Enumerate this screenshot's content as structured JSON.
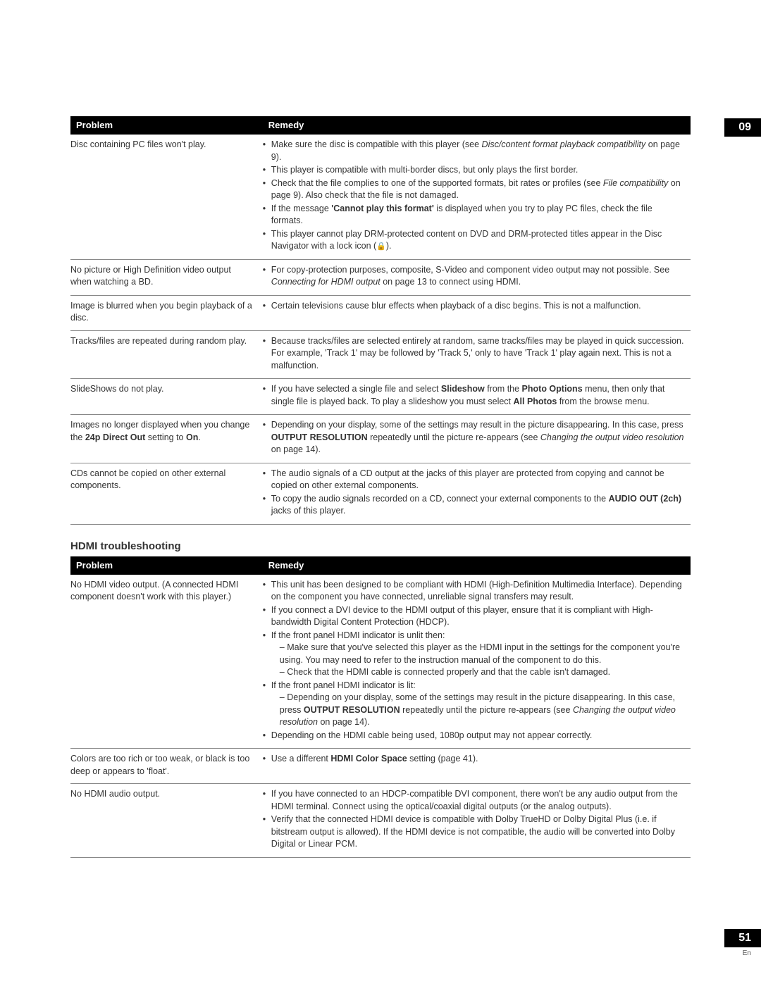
{
  "chapter": "09",
  "pageNumber": "51",
  "lang": "En",
  "colors": {
    "headerBg": "#000000",
    "headerText": "#ffffff",
    "bodyText": "#333333",
    "rule": "#888888"
  },
  "table1": {
    "headers": {
      "problem": "Problem",
      "remedy": "Remedy"
    },
    "rows": [
      {
        "problem": "Disc containing PC files won't play.",
        "remedyHtml": "<ul class='remedy-list'><li>Make sure the disc is compatible with this player (see <em class='it'>Disc/content format playback compatibility</em> on page 9).</li><li>This player is compatible with multi-border discs, but only plays the first border.</li><li>Check that the file complies to one of the supported formats, bit rates or profiles (see <em class='it'>File compatibility</em> on page 9). Also check that the file is not damaged.</li><li>If the message <strong class='b'>'Cannot play this format'</strong> is displayed when you try to play PC files, check the file formats.</li><li>This player cannot play DRM-protected content on DVD and DRM-protected titles appear in the Disc Navigator with a lock icon (<span class='lock-icon'>🔒</span>).</li></ul>"
      },
      {
        "problem": "No picture or High Definition video output when watching a BD.",
        "remedyHtml": "<ul class='remedy-list'><li>For copy-protection purposes, composite, S-Video and component video output may not possible. See <em class='it'>Connecting for HDMI output</em> on page 13 to connect using HDMI.</li></ul>"
      },
      {
        "problem": "Image is blurred when you begin playback of a disc.",
        "remedyHtml": "<ul class='remedy-list'><li>Certain televisions cause blur effects when playback of a disc begins. This is not a malfunction.</li></ul>"
      },
      {
        "problem": "Tracks/files are repeated during random play.",
        "remedyHtml": "<ul class='remedy-list'><li>Because tracks/files are selected entirely at random, same tracks/files may be played in quick succession. For example, 'Track 1' may be followed by 'Track 5,' only to have 'Track 1' play again next. This is not a malfunction.</li></ul>"
      },
      {
        "problem": "SlideShows do not play.",
        "remedyHtml": "<ul class='remedy-list'><li>If you have selected a single file and select <strong class='b'>Slideshow</strong> from the <strong class='b'>Photo Options</strong> menu, then only that single file is played back. To play a slideshow you must select <strong class='b'>All Photos</strong> from the browse menu.</li></ul>"
      },
      {
        "problemHtml": "Images no longer displayed when you change the <strong class='b'>24p Direct Out</strong> setting to <strong class='b'>On</strong>.",
        "remedyHtml": "<ul class='remedy-list'><li>Depending on your display, some of the settings may result in the picture disappearing. In this case, press <strong class='b'>OUTPUT RESOLUTION</strong> repeatedly until the picture re-appears (see <em class='it'>Changing the output video resolution</em> on page 14).</li></ul>"
      },
      {
        "problem": "CDs cannot be copied on other external components.",
        "remedyHtml": "<ul class='remedy-list'><li>The audio signals of a CD output at the jacks of this player are protected from copying and cannot be copied on other external components.</li><li>To copy the audio signals recorded on a CD, connect your external components to the <strong class='b'>AUDIO OUT (2ch)</strong> jacks of this player.</li></ul>"
      }
    ]
  },
  "section2": {
    "heading": "HDMI troubleshooting",
    "headers": {
      "problem": "Problem",
      "remedy": "Remedy"
    },
    "rows": [
      {
        "problem": "No HDMI video output. (A connected HDMI component doesn't work with this player.)",
        "remedyHtml": "<ul class='remedy-list'><li>This unit has been designed to be compliant with HDMI (High-Definition Multimedia Interface). Depending on the component you have connected, unreliable signal transfers may result.</li><li>If you connect a DVI device to the HDMI output of this player, ensure that it is compliant with High-bandwidth Digital Content Protection (HDCP).</li><li>If the front panel HDMI indicator is unlit then:<span class='sub'>Make sure that you've selected this player as the HDMI input in the settings for the component you're using. You may need to refer to the instruction manual of the component to do this.</span><span class='sub'>Check that the HDMI cable is connected properly and that the cable isn't damaged.</span></li><li>If the front panel HDMI indicator is lit:<span class='sub'>Depending on your display, some of the settings may result in the picture disappearing. In this case, press <strong class='b'>OUTPUT RESOLUTION</strong> repeatedly until the picture re-appears (see <em class='it'>Changing the output video resolution</em> on page 14).</span></li><li>Depending on the HDMI cable being used, 1080p output may not appear correctly.</li></ul>"
      },
      {
        "problem": "Colors are too rich or too weak, or black is too deep or appears to 'float'.",
        "remedyHtml": "<ul class='remedy-list'><li>Use a different <strong class='b'>HDMI Color Space</strong> setting (page 41).</li></ul>"
      },
      {
        "problem": "No HDMI audio output.",
        "remedyHtml": "<ul class='remedy-list'><li>If you have connected to an HDCP-compatible DVI component, there won't be any audio output from the HDMI terminal. Connect using the optical/coaxial digital outputs (or the analog outputs).</li><li>Verify that the connected HDMI device is compatible with Dolby TrueHD or Dolby Digital Plus (i.e. if bitstream output is allowed). If the HDMI device is not compatible, the audio will be converted into Dolby Digital or Linear PCM.</li></ul>"
      }
    ]
  }
}
